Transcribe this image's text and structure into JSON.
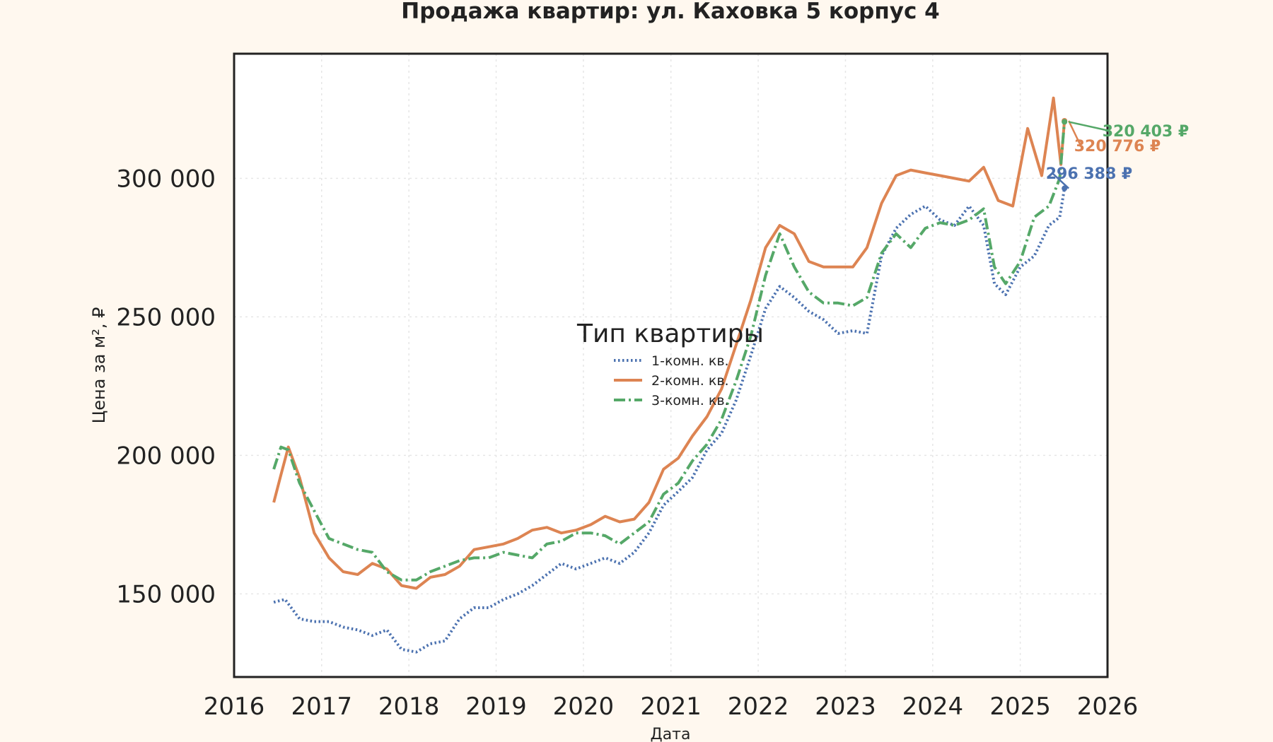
{
  "chart_data": {
    "type": "line",
    "title": "Продажа квартир: ул. Каховка 5 корпус 4",
    "xlabel": "Дата",
    "ylabel": "Цена за м², ₽",
    "xlim": [
      "2016-01-01",
      "2026-01-01"
    ],
    "ylim": [
      120000,
      345000
    ],
    "x_ticks": [
      "2016",
      "2017",
      "2018",
      "2019",
      "2020",
      "2021",
      "2022",
      "2023",
      "2024",
      "2025",
      "2026"
    ],
    "y_ticks": [
      {
        "value": 150000,
        "label": "150 000"
      },
      {
        "value": 200000,
        "label": "200 000"
      },
      {
        "value": 250000,
        "label": "250 000"
      },
      {
        "value": 300000,
        "label": "300 000"
      }
    ],
    "grid": true,
    "legend": {
      "title": "Тип квартиры",
      "placement": "center"
    },
    "series": [
      {
        "name": "1-комн. кв.",
        "color": "#4c72b0",
        "style": "dotted",
        "last_label": "296 388 ₽",
        "points": [
          [
            "2016-06-15",
            147000
          ],
          [
            "2016-08-01",
            148000
          ],
          [
            "2016-10-01",
            141000
          ],
          [
            "2016-12-01",
            140000
          ],
          [
            "2017-02-01",
            140000
          ],
          [
            "2017-04-01",
            138000
          ],
          [
            "2017-06-01",
            137000
          ],
          [
            "2017-08-01",
            135000
          ],
          [
            "2017-10-01",
            137000
          ],
          [
            "2017-12-01",
            130000
          ],
          [
            "2018-02-01",
            129000
          ],
          [
            "2018-04-01",
            132000
          ],
          [
            "2018-06-01",
            133000
          ],
          [
            "2018-08-01",
            141000
          ],
          [
            "2018-10-01",
            145000
          ],
          [
            "2018-12-01",
            145000
          ],
          [
            "2019-02-01",
            148000
          ],
          [
            "2019-04-01",
            150000
          ],
          [
            "2019-06-01",
            153000
          ],
          [
            "2019-08-01",
            157000
          ],
          [
            "2019-10-01",
            161000
          ],
          [
            "2019-12-01",
            159000
          ],
          [
            "2020-02-01",
            161000
          ],
          [
            "2020-04-01",
            163000
          ],
          [
            "2020-06-01",
            161000
          ],
          [
            "2020-08-01",
            165000
          ],
          [
            "2020-10-01",
            172000
          ],
          [
            "2020-12-01",
            182000
          ],
          [
            "2021-02-01",
            187000
          ],
          [
            "2021-04-01",
            192000
          ],
          [
            "2021-06-01",
            202000
          ],
          [
            "2021-08-01",
            208000
          ],
          [
            "2021-10-01",
            220000
          ],
          [
            "2021-12-01",
            236000
          ],
          [
            "2022-02-01",
            253000
          ],
          [
            "2022-04-01",
            261000
          ],
          [
            "2022-06-01",
            257000
          ],
          [
            "2022-08-01",
            252000
          ],
          [
            "2022-10-01",
            249000
          ],
          [
            "2022-12-01",
            244000
          ],
          [
            "2023-02-01",
            245000
          ],
          [
            "2023-04-01",
            244000
          ],
          [
            "2023-06-01",
            272000
          ],
          [
            "2023-08-01",
            282000
          ],
          [
            "2023-10-01",
            287000
          ],
          [
            "2023-12-01",
            290000
          ],
          [
            "2024-02-01",
            285000
          ],
          [
            "2024-04-01",
            283000
          ],
          [
            "2024-06-01",
            290000
          ],
          [
            "2024-08-01",
            283000
          ],
          [
            "2024-09-15",
            262000
          ],
          [
            "2024-11-01",
            258000
          ],
          [
            "2025-01-01",
            268000
          ],
          [
            "2025-03-01",
            272000
          ],
          [
            "2025-05-01",
            283000
          ],
          [
            "2025-06-15",
            286000
          ],
          [
            "2025-07-05",
            296388
          ]
        ]
      },
      {
        "name": "2-комн. кв.",
        "color": "#dd8452",
        "style": "solid",
        "last_label": "320 776 ₽",
        "points": [
          [
            "2016-06-15",
            183000
          ],
          [
            "2016-07-15",
            193000
          ],
          [
            "2016-08-15",
            203000
          ],
          [
            "2016-10-01",
            192000
          ],
          [
            "2016-12-01",
            172000
          ],
          [
            "2017-02-01",
            163000
          ],
          [
            "2017-04-01",
            158000
          ],
          [
            "2017-06-01",
            157000
          ],
          [
            "2017-08-01",
            161000
          ],
          [
            "2017-10-01",
            159000
          ],
          [
            "2017-12-01",
            153000
          ],
          [
            "2018-02-01",
            152000
          ],
          [
            "2018-04-01",
            156000
          ],
          [
            "2018-06-01",
            157000
          ],
          [
            "2018-08-01",
            160000
          ],
          [
            "2018-10-01",
            166000
          ],
          [
            "2018-12-01",
            167000
          ],
          [
            "2019-02-01",
            168000
          ],
          [
            "2019-04-01",
            170000
          ],
          [
            "2019-06-01",
            173000
          ],
          [
            "2019-08-01",
            174000
          ],
          [
            "2019-10-01",
            172000
          ],
          [
            "2019-12-01",
            173000
          ],
          [
            "2020-02-01",
            175000
          ],
          [
            "2020-04-01",
            178000
          ],
          [
            "2020-06-01",
            176000
          ],
          [
            "2020-08-01",
            177000
          ],
          [
            "2020-10-01",
            183000
          ],
          [
            "2020-12-01",
            195000
          ],
          [
            "2021-02-01",
            199000
          ],
          [
            "2021-04-01",
            207000
          ],
          [
            "2021-06-01",
            214000
          ],
          [
            "2021-08-01",
            224000
          ],
          [
            "2021-10-01",
            240000
          ],
          [
            "2021-12-01",
            256000
          ],
          [
            "2022-02-01",
            275000
          ],
          [
            "2022-04-01",
            283000
          ],
          [
            "2022-06-01",
            280000
          ],
          [
            "2022-08-01",
            270000
          ],
          [
            "2022-10-01",
            268000
          ],
          [
            "2022-12-01",
            268000
          ],
          [
            "2023-02-01",
            268000
          ],
          [
            "2023-04-01",
            275000
          ],
          [
            "2023-06-01",
            291000
          ],
          [
            "2023-08-01",
            301000
          ],
          [
            "2023-10-01",
            303000
          ],
          [
            "2023-12-01",
            302000
          ],
          [
            "2024-02-01",
            301000
          ],
          [
            "2024-04-01",
            300000
          ],
          [
            "2024-06-01",
            299000
          ],
          [
            "2024-08-01",
            304000
          ],
          [
            "2024-10-01",
            292000
          ],
          [
            "2024-12-01",
            290000
          ],
          [
            "2025-02-01",
            318000
          ],
          [
            "2025-04-01",
            301000
          ],
          [
            "2025-05-20",
            329000
          ],
          [
            "2025-06-20",
            305000
          ],
          [
            "2025-07-05",
            320776
          ]
        ]
      },
      {
        "name": "3-комн. кв.",
        "color": "#55a868",
        "style": "dashdot",
        "last_label": "320 403 ₽",
        "points": [
          [
            "2016-06-15",
            195000
          ],
          [
            "2016-07-15",
            203000
          ],
          [
            "2016-08-15",
            202000
          ],
          [
            "2016-10-01",
            190000
          ],
          [
            "2016-12-01",
            180000
          ],
          [
            "2017-02-01",
            170000
          ],
          [
            "2017-04-01",
            168000
          ],
          [
            "2017-06-01",
            166000
          ],
          [
            "2017-08-01",
            165000
          ],
          [
            "2017-10-01",
            158000
          ],
          [
            "2017-12-01",
            155000
          ],
          [
            "2018-02-01",
            155000
          ],
          [
            "2018-04-01",
            158000
          ],
          [
            "2018-06-01",
            160000
          ],
          [
            "2018-08-01",
            162000
          ],
          [
            "2018-10-01",
            163000
          ],
          [
            "2018-12-01",
            163000
          ],
          [
            "2019-02-01",
            165000
          ],
          [
            "2019-04-01",
            164000
          ],
          [
            "2019-06-01",
            163000
          ],
          [
            "2019-08-01",
            168000
          ],
          [
            "2019-10-01",
            169000
          ],
          [
            "2019-12-01",
            172000
          ],
          [
            "2020-02-01",
            172000
          ],
          [
            "2020-04-01",
            171000
          ],
          [
            "2020-06-01",
            168000
          ],
          [
            "2020-08-01",
            172000
          ],
          [
            "2020-10-01",
            176000
          ],
          [
            "2020-12-01",
            186000
          ],
          [
            "2021-02-01",
            190000
          ],
          [
            "2021-04-01",
            198000
          ],
          [
            "2021-06-01",
            204000
          ],
          [
            "2021-08-01",
            213000
          ],
          [
            "2021-10-01",
            227000
          ],
          [
            "2021-12-01",
            243000
          ],
          [
            "2022-02-01",
            265000
          ],
          [
            "2022-04-01",
            280000
          ],
          [
            "2022-06-01",
            268000
          ],
          [
            "2022-08-01",
            259000
          ],
          [
            "2022-10-01",
            255000
          ],
          [
            "2022-12-01",
            255000
          ],
          [
            "2023-02-01",
            254000
          ],
          [
            "2023-04-01",
            257000
          ],
          [
            "2023-06-01",
            273000
          ],
          [
            "2023-08-01",
            280000
          ],
          [
            "2023-10-01",
            275000
          ],
          [
            "2023-12-01",
            282000
          ],
          [
            "2024-02-01",
            284000
          ],
          [
            "2024-04-01",
            283000
          ],
          [
            "2024-06-01",
            285000
          ],
          [
            "2024-08-01",
            289000
          ],
          [
            "2024-09-15",
            268000
          ],
          [
            "2024-11-01",
            262000
          ],
          [
            "2025-01-01",
            270000
          ],
          [
            "2025-03-01",
            286000
          ],
          [
            "2025-05-01",
            290000
          ],
          [
            "2025-06-15",
            300000
          ],
          [
            "2025-07-05",
            320403
          ]
        ]
      }
    ]
  }
}
